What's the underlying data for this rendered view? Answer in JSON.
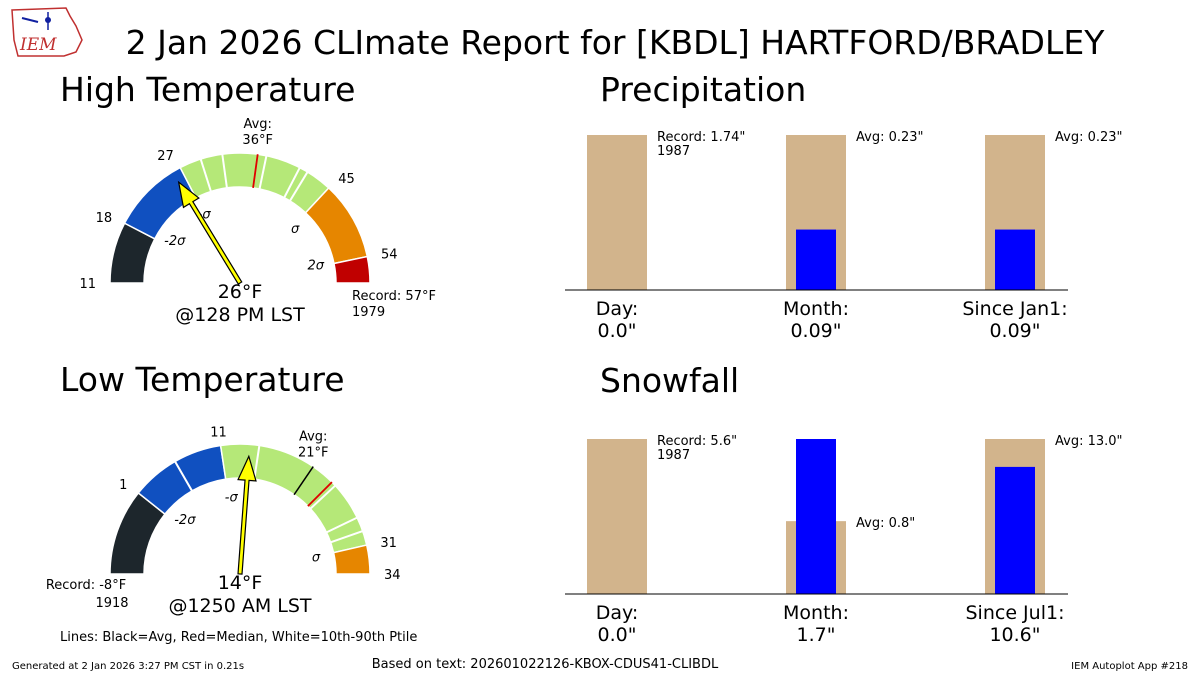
{
  "title": "2 Jan 2026 CLImate Report for [KBDL] HARTFORD/BRADLEY",
  "logo": {
    "text": "IEM",
    "icon": "iem-iowa-logo-icon"
  },
  "footer": {
    "generated": "Generated at 2 Jan 2026 3:27 PM CST in 0.21s",
    "based_on": "Based on text: 202601022126-KBOX-CDUS41-CLIBDL",
    "app": "IEM Autoplot App #218",
    "lines_legend": "Lines: Black=Avg, Red=Median, White=10th-90th Ptile"
  },
  "colors": {
    "very_cold": "#1d262c",
    "cold": "#1050c0",
    "normal": "#b5e878",
    "warm": "#e68600",
    "hot": "#c00000",
    "needle": "#ffff00",
    "bar_bg": "#d2b48c",
    "bar_fg": "#0000ff"
  },
  "chart_data": [
    {
      "type": "gauge",
      "name": "high-temp",
      "title": "High Temperature",
      "units": "°F",
      "range": [
        11,
        57
      ],
      "ticks": [
        {
          "value": 11,
          "label": "11"
        },
        {
          "value": 18,
          "label": "18"
        },
        {
          "value": 27,
          "label": "27"
        },
        {
          "value": 45,
          "label": "45"
        },
        {
          "value": 54,
          "label": "54"
        }
      ],
      "bands": [
        {
          "from": 11,
          "to": 18,
          "color": "very_cold"
        },
        {
          "from": 18,
          "to": 27,
          "color": "cold"
        },
        {
          "from": 27,
          "to": 45,
          "color": "normal"
        },
        {
          "from": 45,
          "to": 54,
          "color": "warm"
        },
        {
          "from": 54,
          "to": 57,
          "color": "hot"
        }
      ],
      "sigma_labels": [
        {
          "value": 19.5,
          "label": "-2σ"
        },
        {
          "value": 27,
          "label": "-σ"
        },
        {
          "value": 45.5,
          "label": "σ"
        },
        {
          "value": 53.5,
          "label": "2σ"
        }
      ],
      "percentile_lines": [
        29.5,
        32,
        37,
        41,
        42
      ],
      "avg": 36,
      "median": 36,
      "avg_label": [
        "Avg:",
        "36°F"
      ],
      "observed": 26,
      "observed_label": "26°F",
      "time_label": "@128 PM LST",
      "record_label": [
        "Record: 57°F",
        "1979"
      ],
      "record_side": "right"
    },
    {
      "type": "gauge",
      "name": "low-temp",
      "title": "Low Temperature",
      "units": "°F",
      "range": [
        -8,
        34
      ],
      "ticks": [
        {
          "value": 1,
          "label": "1"
        },
        {
          "value": 11,
          "label": "11"
        },
        {
          "value": 31,
          "label": "31"
        },
        {
          "value": 34,
          "label": "34"
        }
      ],
      "bands": [
        {
          "from": -8,
          "to": 1,
          "color": "very_cold"
        },
        {
          "from": 1,
          "to": 6,
          "color": "cold"
        },
        {
          "from": 6,
          "to": 11,
          "color": "cold"
        },
        {
          "from": 11,
          "to": 31,
          "color": "normal"
        },
        {
          "from": 31,
          "to": 34,
          "color": "warm"
        }
      ],
      "sigma_labels": [
        {
          "value": 2.5,
          "label": "-2σ"
        },
        {
          "value": 11.5,
          "label": "-σ"
        },
        {
          "value": 31,
          "label": "σ"
        }
      ],
      "percentile_lines": [
        6,
        15,
        24,
        28,
        29.5
      ],
      "avg": 21,
      "median": 23.5,
      "avg_label": [
        "Avg:",
        "21°F"
      ],
      "observed": 14,
      "observed_label": "14°F",
      "time_label": "@1250 AM LST",
      "record_label": [
        "Record: -8°F",
        "1918"
      ],
      "record_side": "left"
    },
    {
      "type": "bar",
      "name": "precip",
      "title": "Precipitation",
      "categories": [
        "Day:",
        "Month:",
        "Since Jan1:"
      ],
      "value_labels": [
        "0.0\"",
        "0.09\"",
        "0.09\""
      ],
      "observed": [
        0.0,
        0.09,
        0.09
      ],
      "background_max": [
        1.74,
        0.23,
        0.23
      ],
      "normalized_observed": [
        0.0,
        0.39,
        0.39
      ],
      "annotations": [
        [
          "Record: 1.74\"",
          "1987"
        ],
        [
          "Avg: 0.23\""
        ],
        [
          "Avg: 0.23\""
        ]
      ]
    },
    {
      "type": "bar",
      "name": "snowfall",
      "title": "Snowfall",
      "categories": [
        "Day:",
        "Month:",
        "Since Jul1:"
      ],
      "value_labels": [
        "0.0\"",
        "1.7\"",
        "10.6\""
      ],
      "observed": [
        0.0,
        1.7,
        10.6
      ],
      "background": [
        5.6,
        0.8,
        13.0
      ],
      "normalized_background": [
        1.0,
        0.47,
        1.0
      ],
      "normalized_observed": [
        0.0,
        1.0,
        0.82
      ],
      "annotations": [
        [
          "Record: 5.6\"",
          "1987"
        ],
        [
          "Avg: 0.8\""
        ],
        [
          "Avg: 13.0\""
        ]
      ]
    }
  ]
}
